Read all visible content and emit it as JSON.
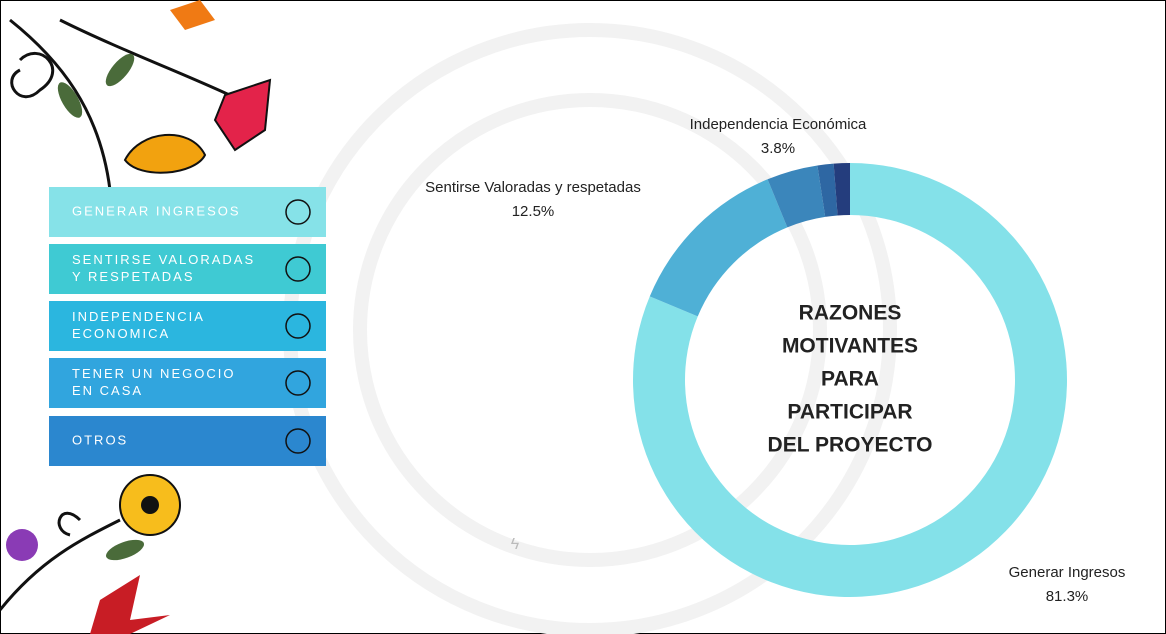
{
  "chart_data": {
    "type": "donut",
    "center_text": [
      "RAZONES",
      "MOTIVANTES",
      "PARA",
      "PARTICIPAR",
      "DEL PROYECTO"
    ],
    "categories": [
      "Generar Ingresos",
      "Sentirse Valoradas y respetadas",
      "Independencia Económica",
      null,
      null
    ],
    "values": [
      81.3,
      12.5,
      3.8,
      1.2,
      1.2
    ],
    "value_labels": [
      "81.3%",
      "12.5%",
      "3.8%",
      null,
      null
    ],
    "colors": [
      "#84e1e9",
      "#4fb0d6",
      "#3b86bb",
      "#2e67a3",
      "#243d7d"
    ]
  },
  "menu": [
    {
      "lines": [
        "GENERAR INGRESOS"
      ],
      "color": "#86e2e8"
    },
    {
      "lines": [
        "SENTIRSE VALORADAS",
        "Y RESPETADAS"
      ],
      "color": "#3fcad3"
    },
    {
      "lines": [
        "INDEPENDENCIA",
        "ECONOMICA"
      ],
      "color": "#2bb6df"
    },
    {
      "lines": [
        "TENER UN NEGOCIO",
        "EN CASA"
      ],
      "color": "#31a5de"
    },
    {
      "lines": [
        "OTROS"
      ],
      "color": "#2b87cf"
    }
  ]
}
